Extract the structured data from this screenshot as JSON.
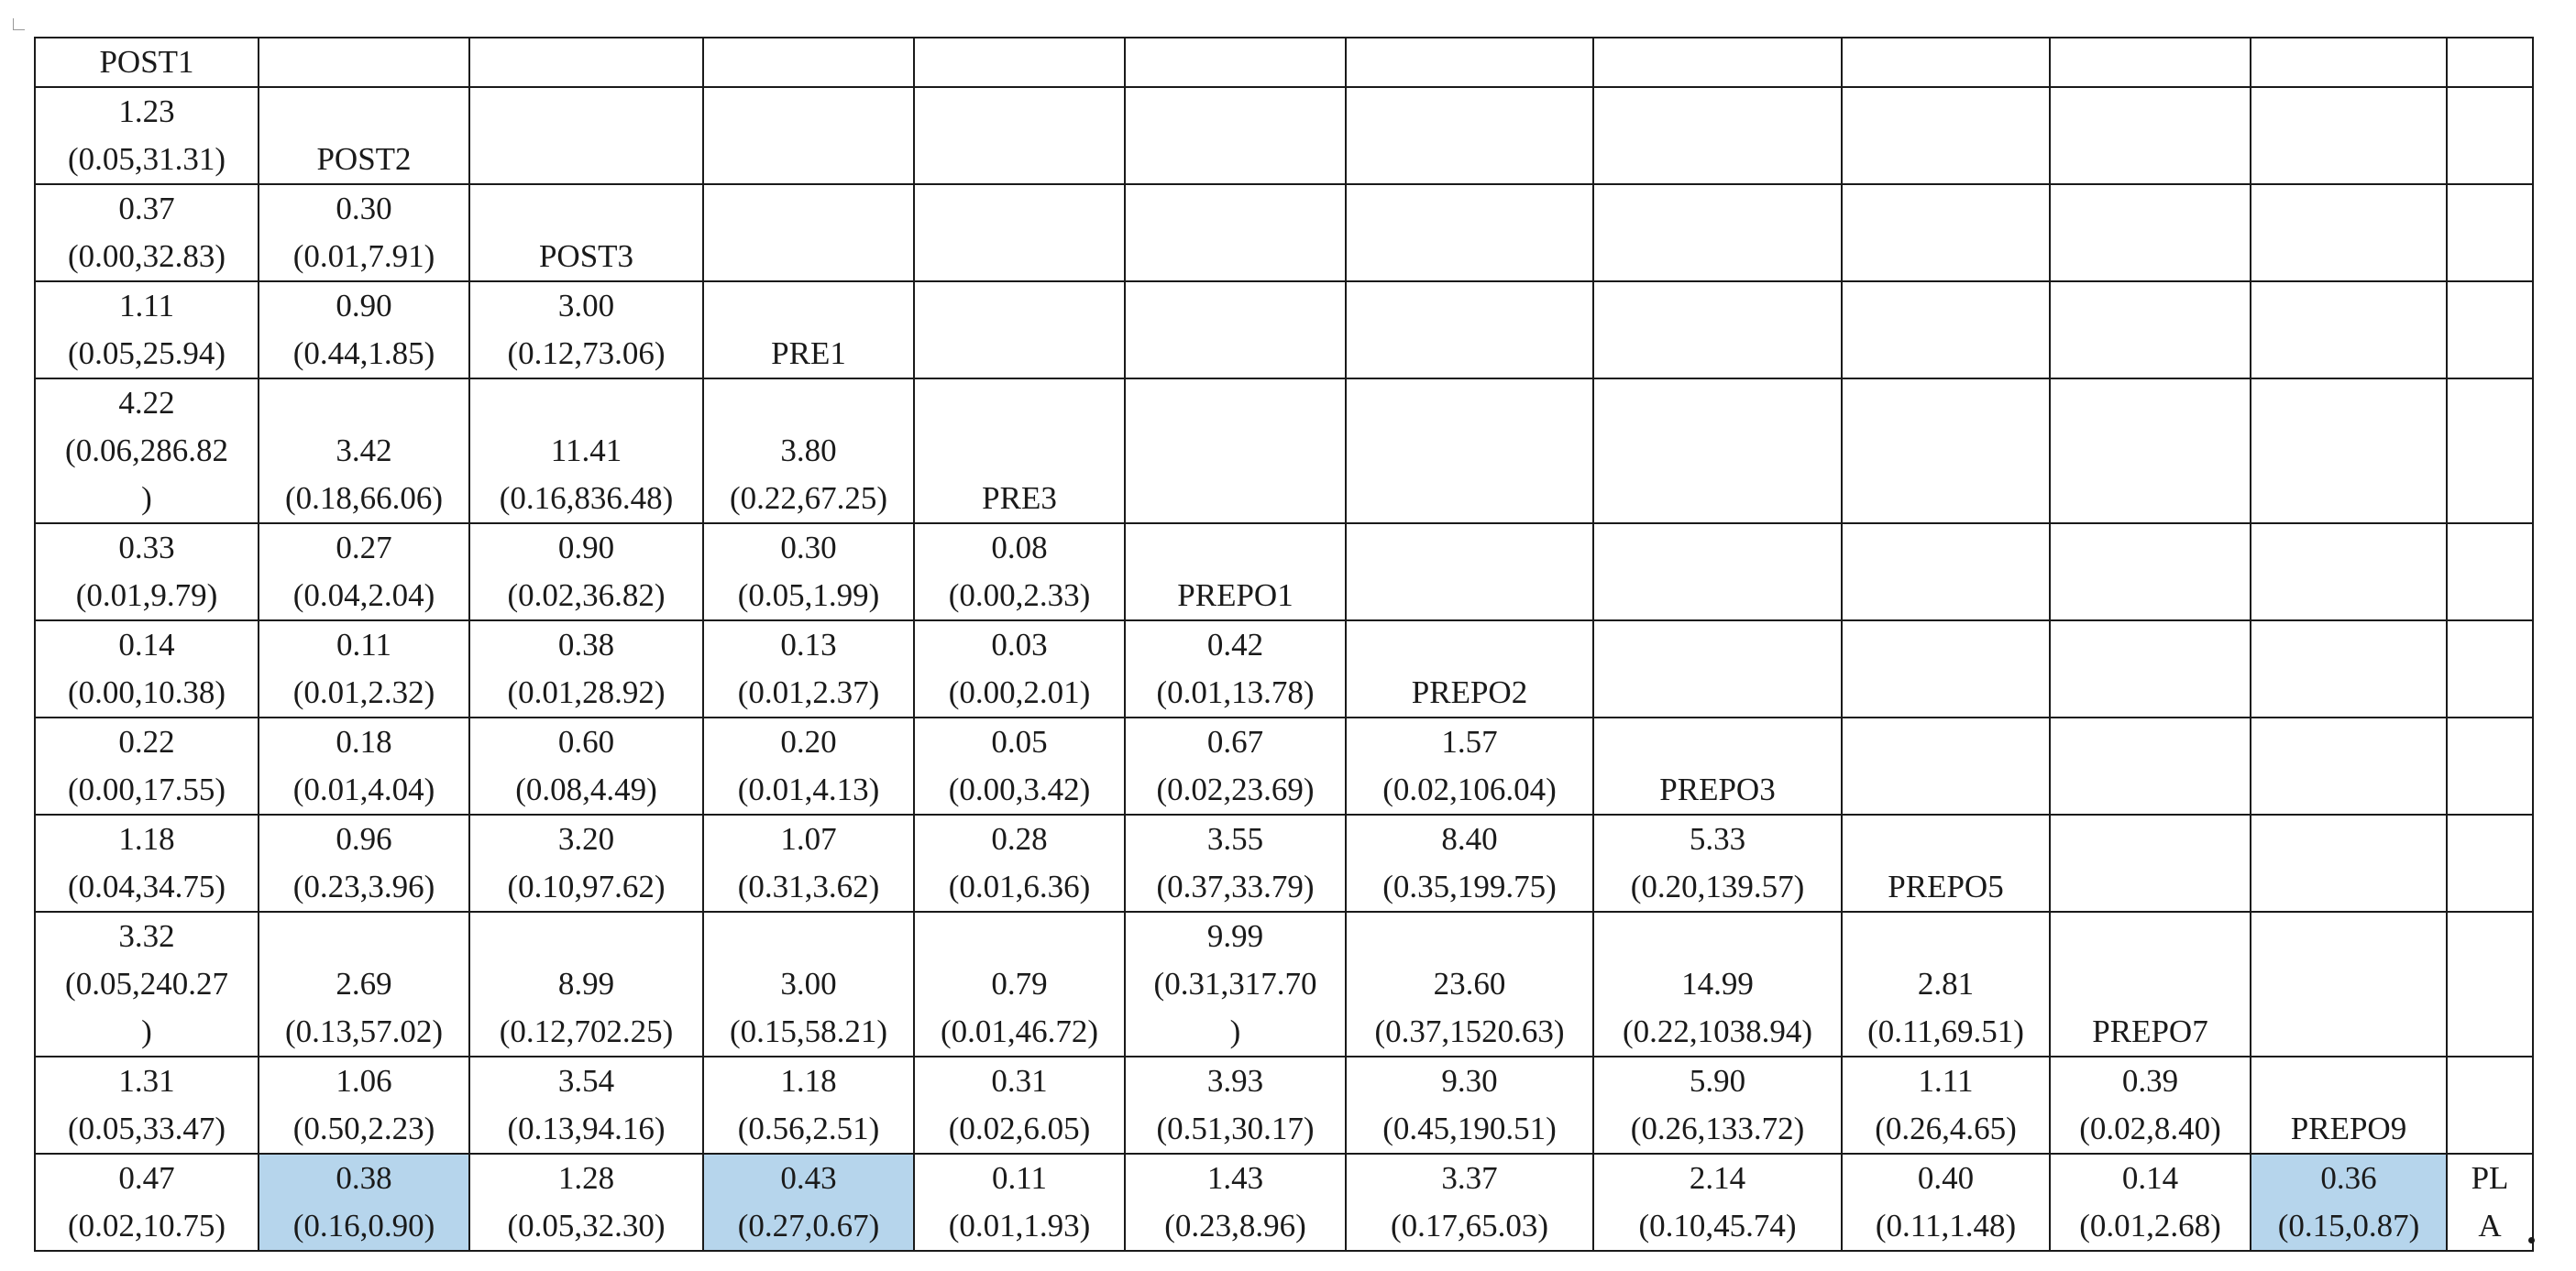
{
  "table": {
    "rows": [
      [
        {
          "lines": [
            "POST1"
          ]
        },
        {
          "lines": []
        },
        {
          "lines": []
        },
        {
          "lines": []
        },
        {
          "lines": []
        },
        {
          "lines": []
        },
        {
          "lines": []
        },
        {
          "lines": []
        },
        {
          "lines": []
        },
        {
          "lines": []
        },
        {
          "lines": []
        },
        {
          "lines": []
        }
      ],
      [
        {
          "lines": [
            "1.23",
            "(0.05,31.31)"
          ]
        },
        {
          "lines": [
            "POST2"
          ]
        },
        {
          "lines": []
        },
        {
          "lines": []
        },
        {
          "lines": []
        },
        {
          "lines": []
        },
        {
          "lines": []
        },
        {
          "lines": []
        },
        {
          "lines": []
        },
        {
          "lines": []
        },
        {
          "lines": []
        },
        {
          "lines": []
        }
      ],
      [
        {
          "lines": [
            "0.37",
            "(0.00,32.83)"
          ]
        },
        {
          "lines": [
            "0.30",
            "(0.01,7.91)"
          ]
        },
        {
          "lines": [
            "POST3"
          ]
        },
        {
          "lines": []
        },
        {
          "lines": []
        },
        {
          "lines": []
        },
        {
          "lines": []
        },
        {
          "lines": []
        },
        {
          "lines": []
        },
        {
          "lines": []
        },
        {
          "lines": []
        },
        {
          "lines": []
        }
      ],
      [
        {
          "lines": [
            "1.11",
            "(0.05,25.94)"
          ]
        },
        {
          "lines": [
            "0.90",
            "(0.44,1.85)"
          ]
        },
        {
          "lines": [
            "3.00",
            "(0.12,73.06)"
          ]
        },
        {
          "lines": [
            "PRE1"
          ]
        },
        {
          "lines": []
        },
        {
          "lines": []
        },
        {
          "lines": []
        },
        {
          "lines": []
        },
        {
          "lines": []
        },
        {
          "lines": []
        },
        {
          "lines": []
        },
        {
          "lines": []
        }
      ],
      [
        {
          "lines": [
            "4.22",
            "(0.06,286.82",
            ")"
          ]
        },
        {
          "lines": [
            "3.42",
            "(0.18,66.06)"
          ]
        },
        {
          "lines": [
            "11.41",
            "(0.16,836.48)"
          ]
        },
        {
          "lines": [
            "3.80",
            "(0.22,67.25)"
          ]
        },
        {
          "lines": [
            "PRE3"
          ]
        },
        {
          "lines": []
        },
        {
          "lines": []
        },
        {
          "lines": []
        },
        {
          "lines": []
        },
        {
          "lines": []
        },
        {
          "lines": []
        },
        {
          "lines": []
        }
      ],
      [
        {
          "lines": [
            "0.33",
            "(0.01,9.79)"
          ]
        },
        {
          "lines": [
            "0.27",
            "(0.04,2.04)"
          ]
        },
        {
          "lines": [
            "0.90",
            "(0.02,36.82)"
          ]
        },
        {
          "lines": [
            "0.30",
            "(0.05,1.99)"
          ]
        },
        {
          "lines": [
            "0.08",
            "(0.00,2.33)"
          ]
        },
        {
          "lines": [
            "PREPO1"
          ]
        },
        {
          "lines": []
        },
        {
          "lines": []
        },
        {
          "lines": []
        },
        {
          "lines": []
        },
        {
          "lines": []
        },
        {
          "lines": []
        }
      ],
      [
        {
          "lines": [
            "0.14",
            "(0.00,10.38)"
          ]
        },
        {
          "lines": [
            "0.11",
            "(0.01,2.32)"
          ]
        },
        {
          "lines": [
            "0.38",
            "(0.01,28.92)"
          ]
        },
        {
          "lines": [
            "0.13",
            "(0.01,2.37)"
          ]
        },
        {
          "lines": [
            "0.03",
            "(0.00,2.01)"
          ]
        },
        {
          "lines": [
            "0.42",
            "(0.01,13.78)"
          ]
        },
        {
          "lines": [
            "PREPO2"
          ]
        },
        {
          "lines": []
        },
        {
          "lines": []
        },
        {
          "lines": []
        },
        {
          "lines": []
        },
        {
          "lines": []
        }
      ],
      [
        {
          "lines": [
            "0.22",
            "(0.00,17.55)"
          ]
        },
        {
          "lines": [
            "0.18",
            "(0.01,4.04)"
          ]
        },
        {
          "lines": [
            "0.60",
            "(0.08,4.49)"
          ]
        },
        {
          "lines": [
            "0.20",
            "(0.01,4.13)"
          ]
        },
        {
          "lines": [
            "0.05",
            "(0.00,3.42)"
          ]
        },
        {
          "lines": [
            "0.67",
            "(0.02,23.69)"
          ]
        },
        {
          "lines": [
            "1.57",
            "(0.02,106.04)"
          ]
        },
        {
          "lines": [
            "PREPO3"
          ]
        },
        {
          "lines": []
        },
        {
          "lines": []
        },
        {
          "lines": []
        },
        {
          "lines": []
        }
      ],
      [
        {
          "lines": [
            "1.18",
            "(0.04,34.75)"
          ]
        },
        {
          "lines": [
            "0.96",
            "(0.23,3.96)"
          ]
        },
        {
          "lines": [
            "3.20",
            "(0.10,97.62)"
          ]
        },
        {
          "lines": [
            "1.07",
            "(0.31,3.62)"
          ]
        },
        {
          "lines": [
            "0.28",
            "(0.01,6.36)"
          ]
        },
        {
          "lines": [
            "3.55",
            "(0.37,33.79)"
          ]
        },
        {
          "lines": [
            "8.40",
            "(0.35,199.75)"
          ]
        },
        {
          "lines": [
            "5.33",
            "(0.20,139.57)"
          ]
        },
        {
          "lines": [
            "PREPO5"
          ]
        },
        {
          "lines": []
        },
        {
          "lines": []
        },
        {
          "lines": []
        }
      ],
      [
        {
          "lines": [
            "3.32",
            "(0.05,240.27",
            ")"
          ]
        },
        {
          "lines": [
            "2.69",
            "(0.13,57.02)"
          ]
        },
        {
          "lines": [
            "8.99",
            "(0.12,702.25)"
          ]
        },
        {
          "lines": [
            "3.00",
            "(0.15,58.21)"
          ]
        },
        {
          "lines": [
            "0.79",
            "(0.01,46.72)"
          ]
        },
        {
          "lines": [
            "9.99",
            "(0.31,317.70",
            ")"
          ]
        },
        {
          "lines": [
            "23.60",
            "(0.37,1520.63)"
          ]
        },
        {
          "lines": [
            "14.99",
            "(0.22,1038.94)"
          ]
        },
        {
          "lines": [
            "2.81",
            "(0.11,69.51)"
          ]
        },
        {
          "lines": [
            "PREPO7"
          ]
        },
        {
          "lines": []
        },
        {
          "lines": []
        }
      ],
      [
        {
          "lines": [
            "1.31",
            "(0.05,33.47)"
          ]
        },
        {
          "lines": [
            "1.06",
            "(0.50,2.23)"
          ]
        },
        {
          "lines": [
            "3.54",
            "(0.13,94.16)"
          ]
        },
        {
          "lines": [
            "1.18",
            "(0.56,2.51)"
          ]
        },
        {
          "lines": [
            "0.31",
            "(0.02,6.05)"
          ]
        },
        {
          "lines": [
            "3.93",
            "(0.51,30.17)"
          ]
        },
        {
          "lines": [
            "9.30",
            "(0.45,190.51)"
          ]
        },
        {
          "lines": [
            "5.90",
            "(0.26,133.72)"
          ]
        },
        {
          "lines": [
            "1.11",
            "(0.26,4.65)"
          ]
        },
        {
          "lines": [
            "0.39",
            "(0.02,8.40)"
          ]
        },
        {
          "lines": [
            "PREPO9"
          ]
        },
        {
          "lines": []
        }
      ],
      [
        {
          "lines": [
            "0.47",
            "(0.02,10.75)"
          ]
        },
        {
          "lines": [
            "0.38",
            "(0.16,0.90)"
          ],
          "highlight": true
        },
        {
          "lines": [
            "1.28",
            "(0.05,32.30)"
          ]
        },
        {
          "lines": [
            "0.43",
            "(0.27,0.67)"
          ],
          "highlight": true
        },
        {
          "lines": [
            "0.11",
            "(0.01,1.93)"
          ]
        },
        {
          "lines": [
            "1.43",
            "(0.23,8.96)"
          ]
        },
        {
          "lines": [
            "3.37",
            "(0.17,65.03)"
          ]
        },
        {
          "lines": [
            "2.14",
            "(0.10,45.74)"
          ]
        },
        {
          "lines": [
            "0.40",
            "(0.11,1.48)"
          ]
        },
        {
          "lines": [
            "0.14",
            "(0.01,2.68)"
          ]
        },
        {
          "lines": [
            "0.36",
            "(0.15,0.87)"
          ],
          "highlight": true
        },
        {
          "lines": [
            "PL",
            "A"
          ]
        }
      ]
    ]
  },
  "colors": {
    "highlight": "#b6d5ec",
    "border": "#1a1a1a"
  }
}
